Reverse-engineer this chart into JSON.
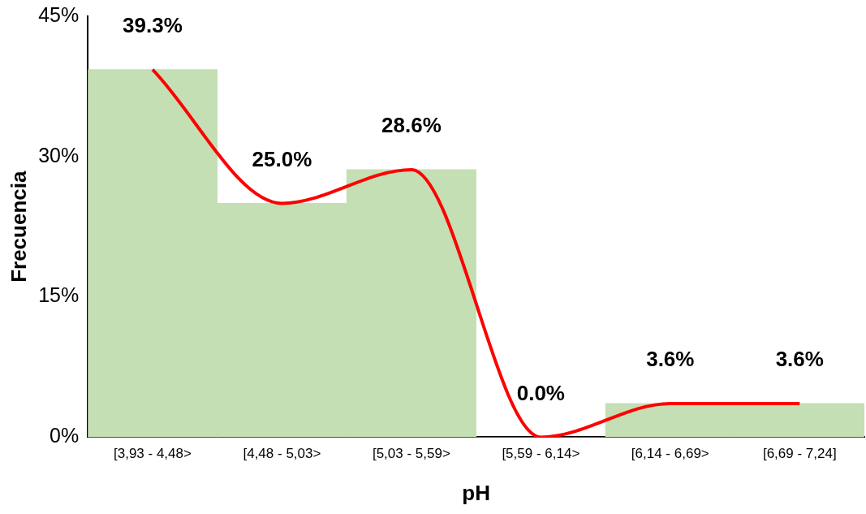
{
  "chart_data": {
    "type": "bar",
    "xlabel": "pH",
    "ylabel": "Frecuencia",
    "categories": [
      "[3,93 - 4,48>",
      "[4,48 - 5,03>",
      "[5,03 - 5,59>",
      "[5,59 - 6,14>",
      "[6,14 - 6,69>",
      "[6,69 - 7,24]"
    ],
    "series": [
      {
        "type": "bar",
        "color": "#c4dfb4",
        "values": [
          39.3,
          25.0,
          28.6,
          0.0,
          3.6,
          3.6
        ],
        "value_labels": [
          "39.3%",
          "25.0%",
          "28.6%",
          "0.0%",
          "3.6%",
          "3.6%"
        ]
      },
      {
        "type": "line",
        "color": "#ff0000",
        "values": [
          39.3,
          25.0,
          28.6,
          0.0,
          3.6,
          3.6
        ]
      }
    ],
    "ylim": [
      0,
      45
    ],
    "yticks": [
      {
        "value": 0,
        "label": "0%"
      },
      {
        "value": 15,
        "label": "15%"
      },
      {
        "value": 30,
        "label": "30%"
      },
      {
        "value": 45,
        "label": "45%"
      }
    ],
    "grid": false,
    "legend": false,
    "marker": "none",
    "line_style": "solid"
  }
}
